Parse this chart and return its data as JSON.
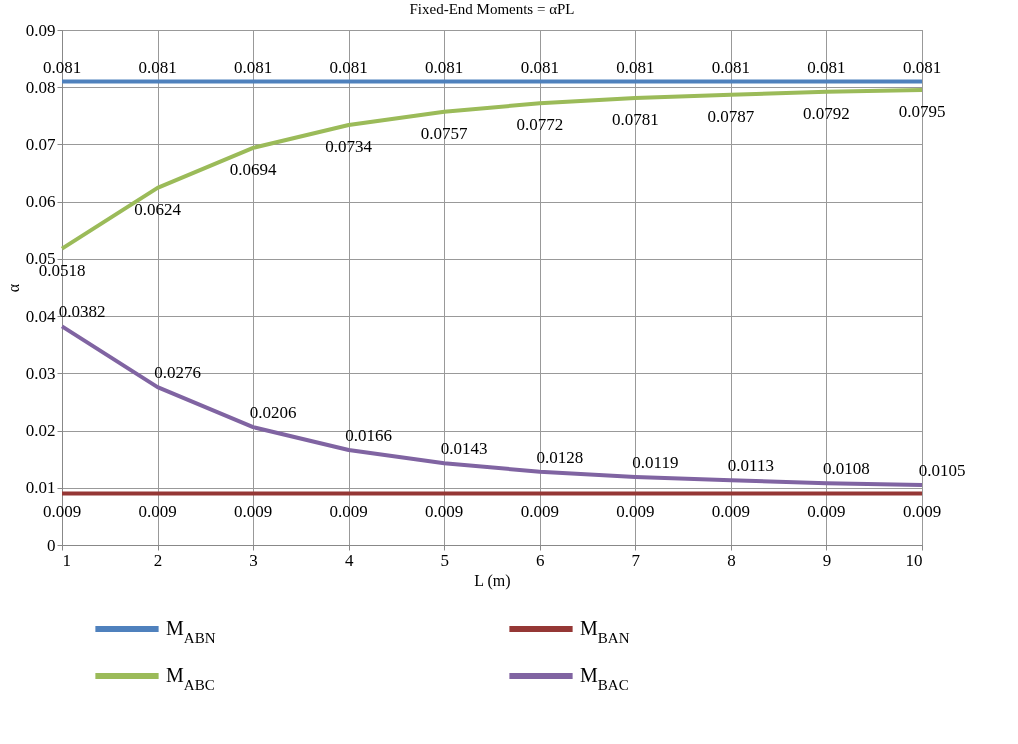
{
  "chart_data": {
    "type": "line",
    "title": "Fixed-End Moments = αPL",
    "xlabel": "L (m)",
    "ylabel": "α",
    "x": [
      1,
      2,
      3,
      4,
      5,
      6,
      7,
      8,
      9,
      10
    ],
    "series": [
      {
        "name": "M$_{ABN}$",
        "color": "#4f81bd",
        "values": [
          0.081,
          0.081,
          0.081,
          0.081,
          0.081,
          0.081,
          0.081,
          0.081,
          0.081,
          0.081
        ]
      },
      {
        "name": "M$_{BAN}$",
        "color": "#953735",
        "values": [
          0.009,
          0.009,
          0.009,
          0.009,
          0.009,
          0.009,
          0.009,
          0.009,
          0.009,
          0.009
        ]
      },
      {
        "name": "M$_{ABC}$",
        "color": "#9bbb59",
        "values": [
          0.0518,
          0.0624,
          0.0694,
          0.0734,
          0.0757,
          0.0772,
          0.0781,
          0.0787,
          0.0792,
          0.0795
        ]
      },
      {
        "name": "M$_{BAC}$",
        "color": "#8064a2",
        "values": [
          0.0382,
          0.0276,
          0.0206,
          0.0166,
          0.0143,
          0.0128,
          0.0119,
          0.0113,
          0.0108,
          0.0105
        ]
      }
    ],
    "xlim": [
      1,
      10
    ],
    "xticks": [
      1,
      2,
      3,
      4,
      5,
      6,
      7,
      8,
      9,
      10
    ],
    "ylim": [
      0,
      0.09
    ],
    "yticks": [
      0,
      0.01,
      0.02,
      0.03,
      0.04,
      0.05,
      0.06,
      0.07,
      0.08,
      0.09
    ],
    "grid": true,
    "data_labels": true,
    "legend": "bottom",
    "marker": "none",
    "line_style": "solid"
  }
}
